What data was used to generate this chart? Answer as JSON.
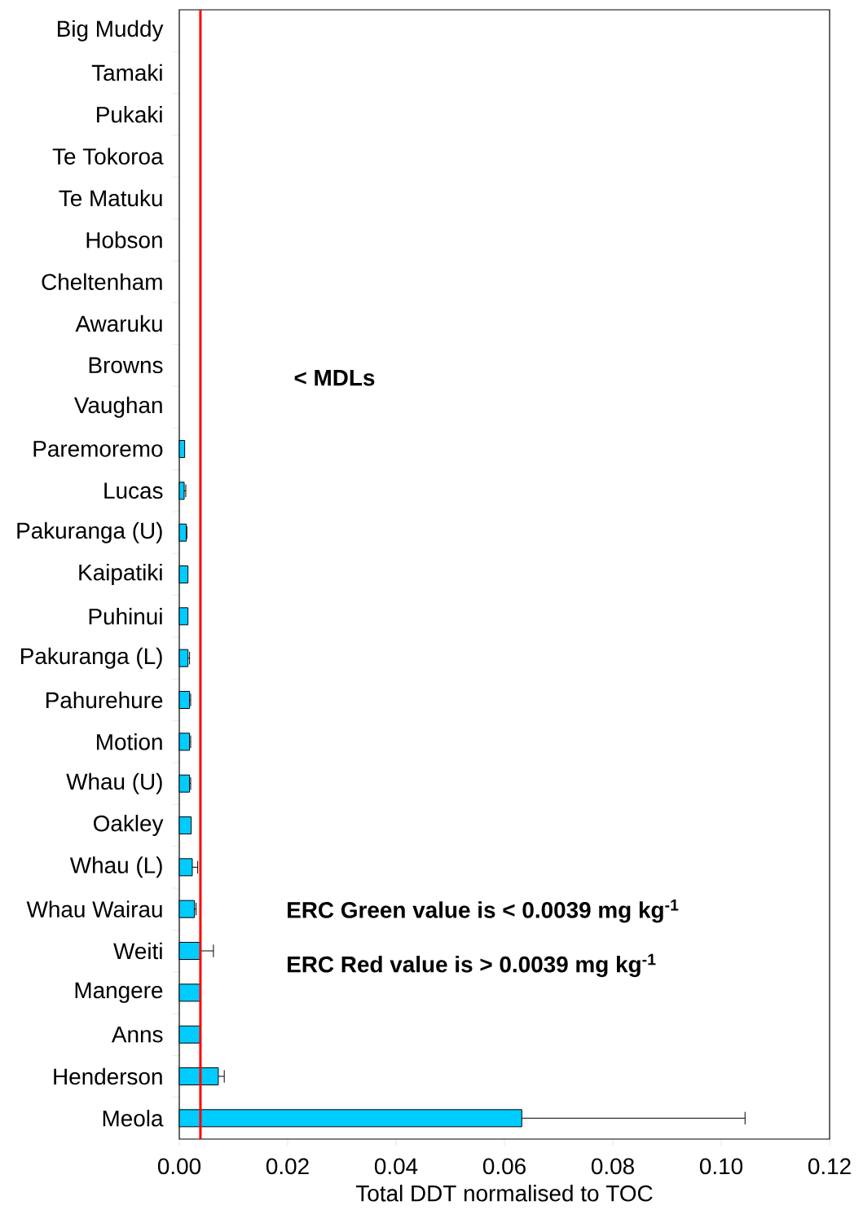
{
  "chart_data": {
    "type": "bar",
    "orientation": "horizontal",
    "xlabel": "Total DDT normalised to TOC",
    "categories": [
      "Big Muddy",
      "Tamaki",
      "Pukaki",
      "Te Tokoroa",
      "Te Matuku",
      "Hobson",
      "Cheltenham",
      "Awaruku",
      "Browns",
      "Vaughan",
      "Paremoremo",
      "Lucas",
      "Pakuranga (U)",
      "Kaipatiki",
      "Puhinui",
      "Pakuranga (L)",
      "Pahurehure",
      "Motion",
      "Whau (U)",
      "Oakley",
      "Whau (L)",
      "Whau Wairau",
      "Weiti",
      "Mangere",
      "Anns",
      "Henderson",
      "Meola"
    ],
    "values": [
      null,
      null,
      null,
      null,
      null,
      null,
      null,
      null,
      null,
      null,
      0.001,
      0.0009,
      0.0013,
      0.0016,
      0.0016,
      0.0016,
      0.0019,
      0.0019,
      0.0019,
      0.0022,
      0.0024,
      0.0028,
      0.0039,
      0.0039,
      0.0039,
      0.0072,
      0.0632
    ],
    "errors": [
      null,
      null,
      null,
      null,
      null,
      null,
      null,
      null,
      null,
      null,
      null,
      [
        0.0009,
        0.0012
      ],
      [
        0.0013,
        0.0014
      ],
      null,
      null,
      [
        0.0016,
        0.0019
      ],
      [
        0.0019,
        0.0021
      ],
      [
        0.0019,
        0.0021
      ],
      [
        0.0019,
        0.0021
      ],
      null,
      [
        0.0024,
        0.0034
      ],
      [
        0.0028,
        0.0031
      ],
      [
        0.0039,
        0.0063
      ],
      null,
      null,
      [
        0.0072,
        0.0083
      ],
      [
        0.0632,
        0.1044
      ]
    ],
    "color": "#00ccff",
    "xlim": [
      0,
      0.12
    ],
    "xticks": [
      {
        "value": 0,
        "label": "0.00"
      },
      {
        "value": 0.02,
        "label": "0.02"
      },
      {
        "value": 0.04,
        "label": "0.04"
      },
      {
        "value": 0.06,
        "label": "0.06"
      },
      {
        "value": 0.08,
        "label": "0.08"
      },
      {
        "value": 0.1,
        "label": "0.10"
      },
      {
        "value": 0.12,
        "label": "0.12"
      }
    ],
    "ref_lines": [
      {
        "axis": "x",
        "value": 0.0039,
        "color": "#ff0000"
      }
    ],
    "annotations": [
      "< MDLs",
      "ERC Green value is < 0.0039 mg kg$^{-1}$",
      "ERC Red value is > 0.0039 mg kg$^{-1}$"
    ],
    "grid": false
  }
}
